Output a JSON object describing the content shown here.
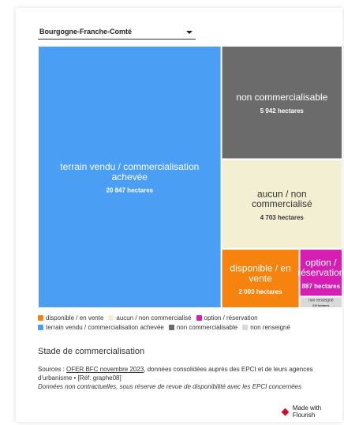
{
  "region_select": {
    "value": "Bourgogne-Franche-Comté"
  },
  "chart_data": {
    "type": "treemap",
    "unit": "hectares",
    "items": [
      {
        "label": "terrain vendu / commercialisation achevée",
        "value": 20847,
        "value_label": "20 847 hectares",
        "color": "#4a9ff5"
      },
      {
        "label": "non commercialisable",
        "value": 5942,
        "value_label": "5 942 hectares",
        "color": "#6b6b6b"
      },
      {
        "label": "aucun / non commercialisé",
        "value": 4703,
        "value_label": "4 703 hectares",
        "color": "#f3efd2"
      },
      {
        "label": "disponible / en vente",
        "value": 2003,
        "value_label": "2 003 hectares",
        "color": "#f7830f"
      },
      {
        "label": "option / réservation",
        "value": 887,
        "value_label": "887 hectares",
        "color": "#d61eb4"
      },
      {
        "label": "non renseigné",
        "value": 214,
        "value_label": "214 hectares",
        "color": "#d9d9d9"
      }
    ]
  },
  "legend": [
    {
      "label": "disponible / en vente",
      "color": "#f7830f"
    },
    {
      "label": "aucun / non commercialisé",
      "color": "#f3efd2"
    },
    {
      "label": "option / réservation",
      "color": "#d61eb4"
    },
    {
      "label": "terrain vendu / commercialisation achevée",
      "color": "#4a9ff5"
    },
    {
      "label": "non commercialisable",
      "color": "#6b6b6b"
    },
    {
      "label": "non renseigné",
      "color": "#d9d9d9"
    }
  ],
  "caption": "Stade de commercialisation",
  "source": {
    "prefix": "Sources : ",
    "link": "OFER BFC novembre 2023",
    "text": ", données consolidées auprès des EPCI et de leurs agences d'urbanisme • [Réf. graphe08]",
    "note": "Données non contractuelles, sous réserve de revue de disponibilité avec les EPCI concernées"
  },
  "credit": "Made with Flourish"
}
